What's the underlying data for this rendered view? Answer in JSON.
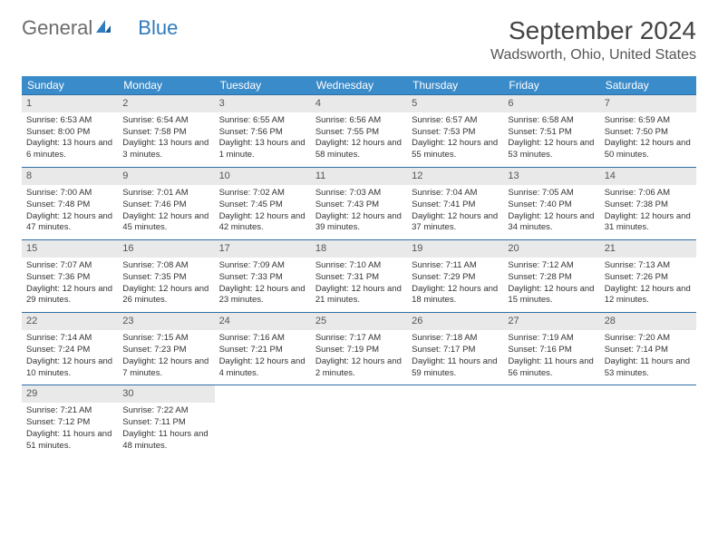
{
  "brand": {
    "part1": "General",
    "part2": "Blue"
  },
  "title": "September 2024",
  "location": "Wadsworth, Ohio, United States",
  "colors": {
    "header_bg": "#3a8bc9",
    "row_border": "#2f6fa5",
    "daynum_bg": "#e9e9e9",
    "logo_gray": "#6c6c6c",
    "logo_blue": "#2f7bbf"
  },
  "dow": [
    "Sunday",
    "Monday",
    "Tuesday",
    "Wednesday",
    "Thursday",
    "Friday",
    "Saturday"
  ],
  "weeks": [
    [
      {
        "n": "1",
        "sr": "Sunrise: 6:53 AM",
        "ss": "Sunset: 8:00 PM",
        "dl": "Daylight: 13 hours and 6 minutes."
      },
      {
        "n": "2",
        "sr": "Sunrise: 6:54 AM",
        "ss": "Sunset: 7:58 PM",
        "dl": "Daylight: 13 hours and 3 minutes."
      },
      {
        "n": "3",
        "sr": "Sunrise: 6:55 AM",
        "ss": "Sunset: 7:56 PM",
        "dl": "Daylight: 13 hours and 1 minute."
      },
      {
        "n": "4",
        "sr": "Sunrise: 6:56 AM",
        "ss": "Sunset: 7:55 PM",
        "dl": "Daylight: 12 hours and 58 minutes."
      },
      {
        "n": "5",
        "sr": "Sunrise: 6:57 AM",
        "ss": "Sunset: 7:53 PM",
        "dl": "Daylight: 12 hours and 55 minutes."
      },
      {
        "n": "6",
        "sr": "Sunrise: 6:58 AM",
        "ss": "Sunset: 7:51 PM",
        "dl": "Daylight: 12 hours and 53 minutes."
      },
      {
        "n": "7",
        "sr": "Sunrise: 6:59 AM",
        "ss": "Sunset: 7:50 PM",
        "dl": "Daylight: 12 hours and 50 minutes."
      }
    ],
    [
      {
        "n": "8",
        "sr": "Sunrise: 7:00 AM",
        "ss": "Sunset: 7:48 PM",
        "dl": "Daylight: 12 hours and 47 minutes."
      },
      {
        "n": "9",
        "sr": "Sunrise: 7:01 AM",
        "ss": "Sunset: 7:46 PM",
        "dl": "Daylight: 12 hours and 45 minutes."
      },
      {
        "n": "10",
        "sr": "Sunrise: 7:02 AM",
        "ss": "Sunset: 7:45 PM",
        "dl": "Daylight: 12 hours and 42 minutes."
      },
      {
        "n": "11",
        "sr": "Sunrise: 7:03 AM",
        "ss": "Sunset: 7:43 PM",
        "dl": "Daylight: 12 hours and 39 minutes."
      },
      {
        "n": "12",
        "sr": "Sunrise: 7:04 AM",
        "ss": "Sunset: 7:41 PM",
        "dl": "Daylight: 12 hours and 37 minutes."
      },
      {
        "n": "13",
        "sr": "Sunrise: 7:05 AM",
        "ss": "Sunset: 7:40 PM",
        "dl": "Daylight: 12 hours and 34 minutes."
      },
      {
        "n": "14",
        "sr": "Sunrise: 7:06 AM",
        "ss": "Sunset: 7:38 PM",
        "dl": "Daylight: 12 hours and 31 minutes."
      }
    ],
    [
      {
        "n": "15",
        "sr": "Sunrise: 7:07 AM",
        "ss": "Sunset: 7:36 PM",
        "dl": "Daylight: 12 hours and 29 minutes."
      },
      {
        "n": "16",
        "sr": "Sunrise: 7:08 AM",
        "ss": "Sunset: 7:35 PM",
        "dl": "Daylight: 12 hours and 26 minutes."
      },
      {
        "n": "17",
        "sr": "Sunrise: 7:09 AM",
        "ss": "Sunset: 7:33 PM",
        "dl": "Daylight: 12 hours and 23 minutes."
      },
      {
        "n": "18",
        "sr": "Sunrise: 7:10 AM",
        "ss": "Sunset: 7:31 PM",
        "dl": "Daylight: 12 hours and 21 minutes."
      },
      {
        "n": "19",
        "sr": "Sunrise: 7:11 AM",
        "ss": "Sunset: 7:29 PM",
        "dl": "Daylight: 12 hours and 18 minutes."
      },
      {
        "n": "20",
        "sr": "Sunrise: 7:12 AM",
        "ss": "Sunset: 7:28 PM",
        "dl": "Daylight: 12 hours and 15 minutes."
      },
      {
        "n": "21",
        "sr": "Sunrise: 7:13 AM",
        "ss": "Sunset: 7:26 PM",
        "dl": "Daylight: 12 hours and 12 minutes."
      }
    ],
    [
      {
        "n": "22",
        "sr": "Sunrise: 7:14 AM",
        "ss": "Sunset: 7:24 PM",
        "dl": "Daylight: 12 hours and 10 minutes."
      },
      {
        "n": "23",
        "sr": "Sunrise: 7:15 AM",
        "ss": "Sunset: 7:23 PM",
        "dl": "Daylight: 12 hours and 7 minutes."
      },
      {
        "n": "24",
        "sr": "Sunrise: 7:16 AM",
        "ss": "Sunset: 7:21 PM",
        "dl": "Daylight: 12 hours and 4 minutes."
      },
      {
        "n": "25",
        "sr": "Sunrise: 7:17 AM",
        "ss": "Sunset: 7:19 PM",
        "dl": "Daylight: 12 hours and 2 minutes."
      },
      {
        "n": "26",
        "sr": "Sunrise: 7:18 AM",
        "ss": "Sunset: 7:17 PM",
        "dl": "Daylight: 11 hours and 59 minutes."
      },
      {
        "n": "27",
        "sr": "Sunrise: 7:19 AM",
        "ss": "Sunset: 7:16 PM",
        "dl": "Daylight: 11 hours and 56 minutes."
      },
      {
        "n": "28",
        "sr": "Sunrise: 7:20 AM",
        "ss": "Sunset: 7:14 PM",
        "dl": "Daylight: 11 hours and 53 minutes."
      }
    ],
    [
      {
        "n": "29",
        "sr": "Sunrise: 7:21 AM",
        "ss": "Sunset: 7:12 PM",
        "dl": "Daylight: 11 hours and 51 minutes."
      },
      {
        "n": "30",
        "sr": "Sunrise: 7:22 AM",
        "ss": "Sunset: 7:11 PM",
        "dl": "Daylight: 11 hours and 48 minutes."
      },
      null,
      null,
      null,
      null,
      null
    ]
  ]
}
